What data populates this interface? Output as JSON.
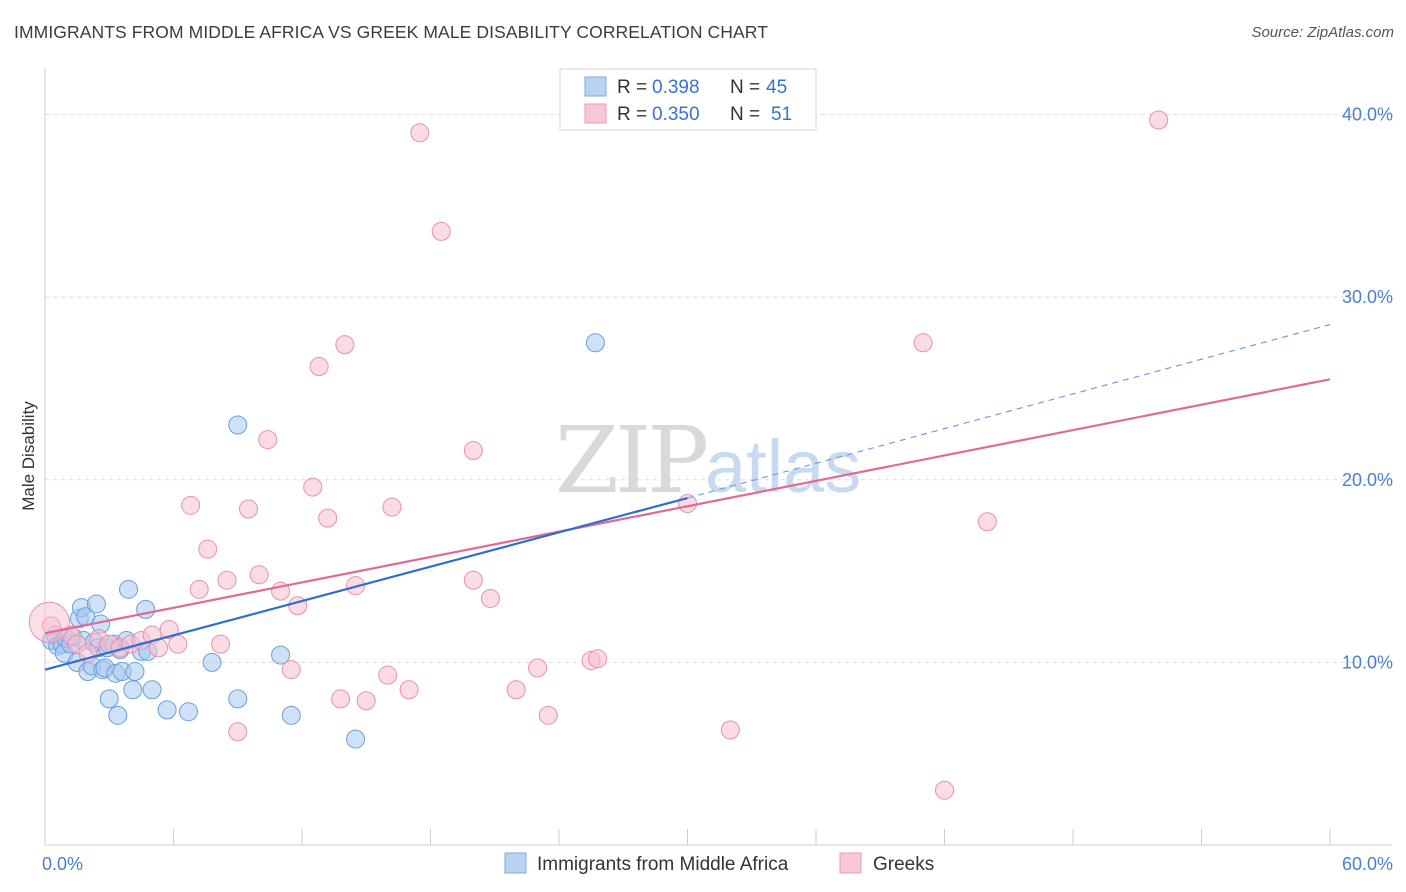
{
  "title": "IMMIGRANTS FROM MIDDLE AFRICA VS GREEK MALE DISABILITY CORRELATION CHART",
  "source": "Source: ZipAtlas.com",
  "watermark": {
    "zip": "ZIP",
    "atlas": "atlas"
  },
  "chart_data": {
    "type": "scatter",
    "title": "IMMIGRANTS FROM MIDDLE AFRICA VS GREEK MALE DISABILITY CORRELATION CHART",
    "xlabel": "",
    "ylabel": "Male Disability",
    "xlim": [
      0,
      60
    ],
    "ylim": [
      0,
      42
    ],
    "x_tick_labels": [
      {
        "value": 0,
        "label": "0.0%"
      },
      {
        "value": 60,
        "label": "60.0%"
      }
    ],
    "y_tick_labels": [
      {
        "value": 10,
        "label": "10.0%"
      },
      {
        "value": 20,
        "label": "20.0%"
      },
      {
        "value": 30,
        "label": "30.0%"
      },
      {
        "value": 40,
        "label": "40.0%"
      }
    ],
    "legend_stats": [
      {
        "r_label": "R =",
        "r_value": "0.398",
        "n_label": "N =",
        "n_value": "45"
      },
      {
        "r_label": "R =",
        "r_value": "0.350",
        "n_label": "N =",
        "n_value": "51"
      }
    ],
    "series": [
      {
        "name": "Immigrants from Middle Africa",
        "color": "#a8c8f0",
        "stroke": "#6a9fdb",
        "line_color": "#2d6fcf",
        "trend": {
          "x0": 0,
          "y0": 9.6,
          "x1": 30,
          "y1": 19.0,
          "dashed_to_x": 60,
          "dashed_to_y": 28.5
        },
        "points": [
          [
            0.3,
            11.2
          ],
          [
            0.5,
            11.5
          ],
          [
            0.6,
            10.9
          ],
          [
            0.8,
            11.0
          ],
          [
            0.9,
            10.5
          ],
          [
            1.0,
            11.3
          ],
          [
            1.2,
            11.0
          ],
          [
            1.3,
            11.4
          ],
          [
            1.5,
            10.0
          ],
          [
            1.6,
            12.4
          ],
          [
            1.7,
            13.0
          ],
          [
            1.8,
            11.2
          ],
          [
            1.9,
            12.5
          ],
          [
            2.0,
            9.5
          ],
          [
            2.2,
            9.8
          ],
          [
            2.3,
            11.1
          ],
          [
            2.4,
            13.2
          ],
          [
            2.5,
            10.8
          ],
          [
            2.6,
            12.1
          ],
          [
            2.7,
            9.6
          ],
          [
            2.8,
            9.7
          ],
          [
            2.9,
            10.8
          ],
          [
            3.0,
            8.0
          ],
          [
            3.2,
            11.0
          ],
          [
            3.3,
            9.4
          ],
          [
            3.4,
            7.1
          ],
          [
            3.5,
            10.7
          ],
          [
            3.6,
            9.5
          ],
          [
            3.8,
            11.2
          ],
          [
            3.9,
            14.0
          ],
          [
            4.1,
            8.5
          ],
          [
            4.2,
            9.5
          ],
          [
            4.5,
            10.6
          ],
          [
            4.7,
            12.9
          ],
          [
            4.8,
            10.6
          ],
          [
            5.0,
            8.5
          ],
          [
            5.7,
            7.4
          ],
          [
            6.7,
            7.3
          ],
          [
            7.8,
            10.0
          ],
          [
            9.0,
            8.0
          ],
          [
            9.0,
            23.0
          ],
          [
            11.0,
            10.4
          ],
          [
            11.5,
            7.1
          ],
          [
            14.5,
            5.8
          ],
          [
            25.7,
            27.5
          ]
        ]
      },
      {
        "name": "Greeks",
        "color": "#f7bfd0",
        "stroke": "#e890ae",
        "line_color": "#e06a96",
        "trend": {
          "x0": 0,
          "y0": 11.6,
          "x1": 60,
          "y1": 25.5
        },
        "points": [
          [
            0.3,
            12.0
          ],
          [
            1.2,
            11.5
          ],
          [
            1.5,
            11.0
          ],
          [
            2.0,
            10.5
          ],
          [
            2.5,
            11.3
          ],
          [
            3.0,
            11.0
          ],
          [
            3.5,
            10.8
          ],
          [
            4.0,
            11.0
          ],
          [
            4.5,
            11.2
          ],
          [
            5.0,
            11.5
          ],
          [
            5.3,
            10.8
          ],
          [
            5.8,
            11.8
          ],
          [
            6.2,
            11.0
          ],
          [
            6.8,
            18.6
          ],
          [
            7.2,
            14.0
          ],
          [
            7.6,
            16.2
          ],
          [
            8.2,
            11.0
          ],
          [
            8.5,
            14.5
          ],
          [
            9.0,
            6.2
          ],
          [
            9.5,
            18.4
          ],
          [
            10.0,
            14.8
          ],
          [
            10.4,
            22.2
          ],
          [
            11.0,
            13.9
          ],
          [
            11.5,
            9.6
          ],
          [
            11.8,
            13.1
          ],
          [
            12.5,
            19.6
          ],
          [
            12.8,
            26.2
          ],
          [
            13.2,
            17.9
          ],
          [
            13.8,
            8.0
          ],
          [
            14.0,
            27.4
          ],
          [
            14.5,
            14.2
          ],
          [
            15.0,
            7.9
          ],
          [
            16.0,
            9.3
          ],
          [
            16.2,
            18.5
          ],
          [
            17.0,
            8.5
          ],
          [
            17.5,
            39.0
          ],
          [
            18.5,
            33.6
          ],
          [
            20.0,
            21.6
          ],
          [
            20.0,
            14.5
          ],
          [
            20.8,
            13.5
          ],
          [
            22.0,
            8.5
          ],
          [
            23.0,
            9.7
          ],
          [
            23.5,
            7.1
          ],
          [
            25.5,
            10.1
          ],
          [
            25.8,
            10.2
          ],
          [
            30.0,
            18.7
          ],
          [
            32.0,
            6.3
          ],
          [
            41.0,
            27.5
          ],
          [
            42.0,
            3.0
          ],
          [
            44.0,
            17.7
          ],
          [
            52.0,
            39.7
          ]
        ]
      }
    ]
  },
  "bottom_legend": [
    {
      "label": "Immigrants from Middle Africa"
    },
    {
      "label": "Greeks"
    }
  ]
}
